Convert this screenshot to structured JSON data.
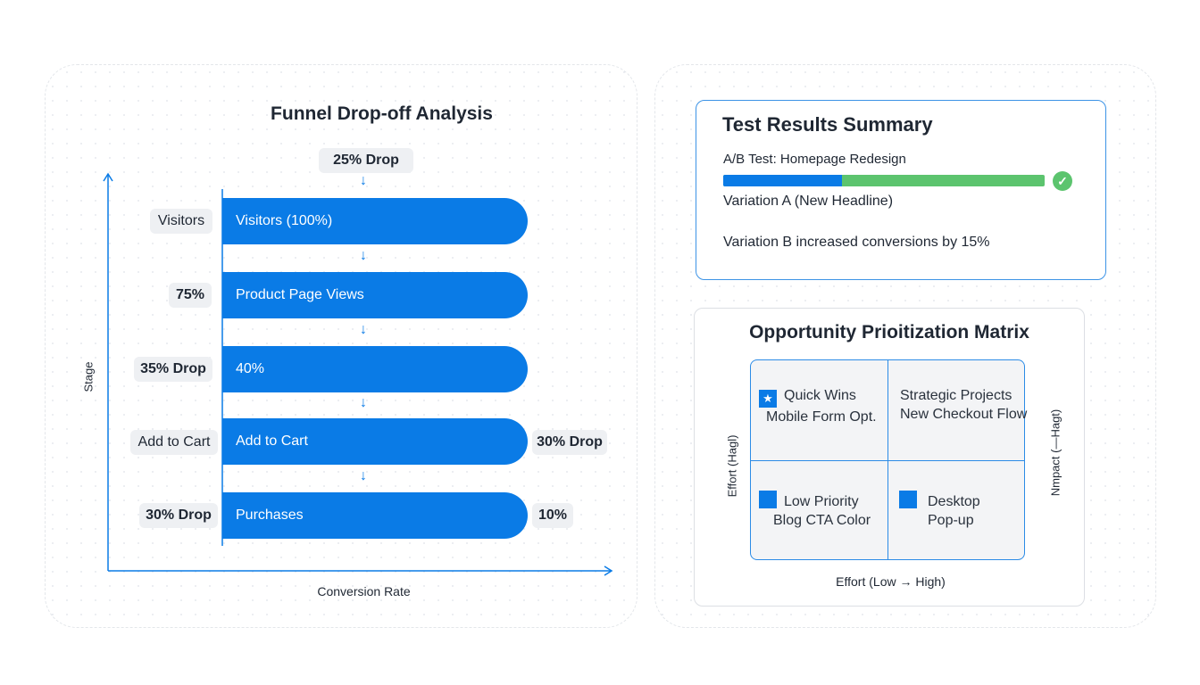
{
  "funnel": {
    "title": "Funnel Drop-off Analysis",
    "top_drop": "25% Drop",
    "y_label": "Stage",
    "x_label": "Conversion Rate",
    "bars": [
      "Visitors (100%)",
      "Product Page Views",
      "40%",
      "Add to Cart",
      "Purchases"
    ],
    "left_labels": [
      "Visitors",
      "75%",
      "35% Drop",
      "Add to Cart",
      "30% Drop"
    ],
    "right_labels": [
      "30% Drop",
      "10%"
    ]
  },
  "test": {
    "title": "Test Results Summary",
    "subtitle": "A/B Test: Homepage Redesign",
    "variation_a": "Variation A (New Headline)",
    "result": "Variation B increased conversions by 15%",
    "progress_a_fraction": 0.37,
    "colors": {
      "a": "#0a7be6",
      "b": "#5cc46e"
    }
  },
  "matrix": {
    "title": "Opportunity Prioitization Matrix",
    "y_label_left": "Effort (Hagl)",
    "y_label_right": "Nmpact (—Hagt)",
    "x_label": "Effort (Low → High)",
    "cells": [
      {
        "title": "Quick Wins",
        "item": "Mobile Form Opt."
      },
      {
        "title": "Strategic Projects",
        "item": "New Checkout Flow"
      },
      {
        "title": "Low Priority",
        "item": "Blog CTA Color"
      },
      {
        "title": "Desktop",
        "item": "Pop-up"
      }
    ]
  }
}
